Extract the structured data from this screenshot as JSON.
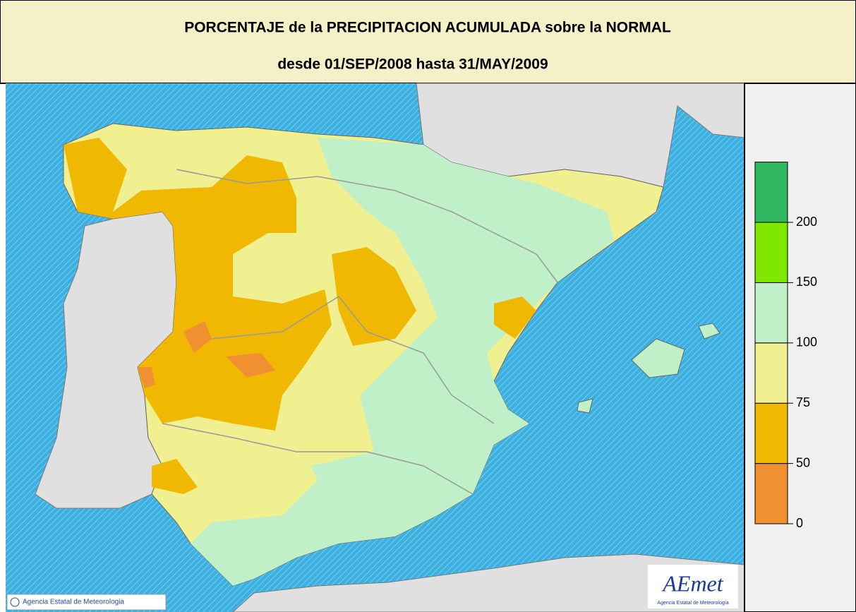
{
  "header": {
    "title": "PORCENTAJE de la PRECIPITACION ACUMULADA sobre la NORMAL",
    "subtitle": "desde 01/SEP/2008 hasta 31/MAY/2009"
  },
  "legend": {
    "ticks": [
      0,
      50,
      75,
      100,
      150,
      200
    ],
    "colors": [
      "#f09030",
      "#f0b800",
      "#f0f090",
      "#c0f0c8",
      "#80e800",
      "#30b860"
    ]
  },
  "credit": "Agencia Estatal de Meteorologia",
  "logo": {
    "name": "AEmet",
    "caption": "Agencia Estatal de Meteorología"
  }
}
